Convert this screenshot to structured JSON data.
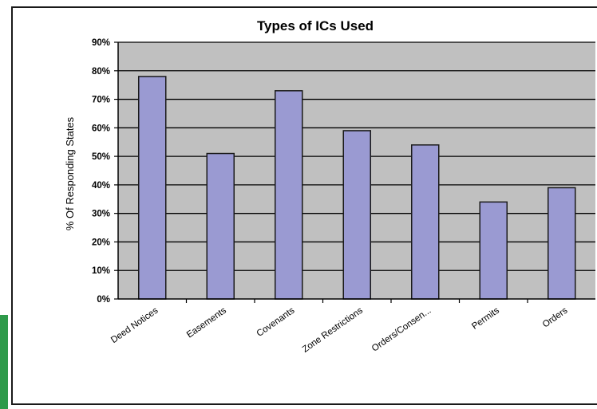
{
  "chart_data": {
    "type": "bar",
    "title": "Types of ICs Used",
    "xlabel": "",
    "ylabel": "% Of Responding States",
    "categories": [
      "Deed Notices",
      "Easements",
      "Covenants",
      "Zone Restrictions",
      "Orders/Consen...",
      "Permits",
      "Orders"
    ],
    "values": [
      78,
      51,
      73,
      59,
      54,
      34,
      39
    ],
    "ylim": [
      0,
      90
    ],
    "yticks": [
      0,
      10,
      20,
      30,
      40,
      50,
      60,
      70,
      80,
      90
    ],
    "ytick_suffix": "%",
    "grid": true,
    "legend": "none",
    "colors": {
      "bar": "#9a9ad2",
      "bar_edge": "#1a1a1a",
      "plot_bg": "#c0c0c0",
      "grid": "#000000"
    }
  }
}
